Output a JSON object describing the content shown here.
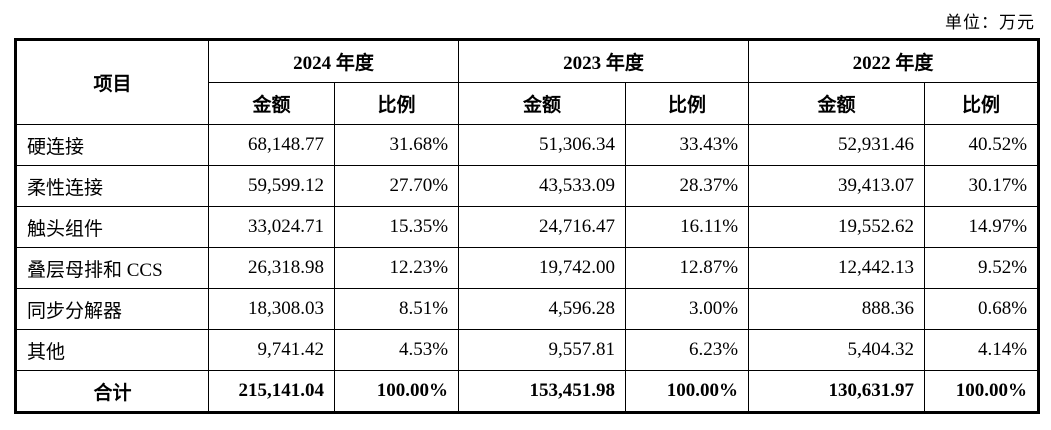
{
  "unit_note": "单位：万元",
  "table": {
    "item_header": "项目",
    "year_groups": [
      {
        "label": "2024 年度"
      },
      {
        "label": "2023 年度"
      },
      {
        "label": "2022 年度"
      }
    ],
    "sub_headers": {
      "amount": "金额",
      "ratio": "比例"
    },
    "rows": [
      {
        "item": "硬连接",
        "values": [
          "68,148.77",
          "31.68%",
          "51,306.34",
          "33.43%",
          "52,931.46",
          "40.52%"
        ]
      },
      {
        "item": "柔性连接",
        "values": [
          "59,599.12",
          "27.70%",
          "43,533.09",
          "28.37%",
          "39,413.07",
          "30.17%"
        ]
      },
      {
        "item": "触头组件",
        "values": [
          "33,024.71",
          "15.35%",
          "24,716.47",
          "16.11%",
          "19,552.62",
          "14.97%"
        ]
      },
      {
        "item": "叠层母排和 CCS",
        "values": [
          "26,318.98",
          "12.23%",
          "19,742.00",
          "12.87%",
          "12,442.13",
          "9.52%"
        ]
      },
      {
        "item": "同步分解器",
        "values": [
          "18,308.03",
          "8.51%",
          "4,596.28",
          "3.00%",
          "888.36",
          "0.68%"
        ]
      },
      {
        "item": "其他",
        "values": [
          "9,741.42",
          "4.53%",
          "9,557.81",
          "6.23%",
          "5,404.32",
          "4.14%"
        ]
      },
      {
        "item": "合计",
        "values": [
          "215,141.04",
          "100.00%",
          "153,451.98",
          "100.00%",
          "130,631.97",
          "100.00%"
        ],
        "total": true
      }
    ]
  }
}
